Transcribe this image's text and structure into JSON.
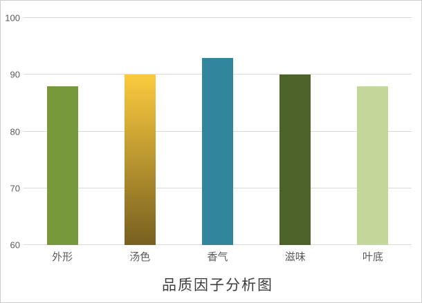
{
  "chart_data": {
    "type": "bar",
    "title": "品质因子分析图",
    "categories": [
      "外形",
      "汤色",
      "香气",
      "滋味",
      "叶底"
    ],
    "values": [
      88,
      90,
      93,
      90,
      88
    ],
    "bar_fills": [
      {
        "type": "solid",
        "color": "#77993C"
      },
      {
        "type": "gradient",
        "from": "#FBCB3E",
        "to": "#776020"
      },
      {
        "type": "solid",
        "color": "#31859C"
      },
      {
        "type": "solid",
        "color": "#4D6228"
      },
      {
        "type": "solid",
        "color": "#C4D79B"
      }
    ],
    "xlabel": "",
    "ylabel": "",
    "ylim": [
      60,
      100
    ],
    "yticks": [
      60,
      70,
      80,
      90,
      100
    ],
    "grid": "horizontal",
    "legend": "none"
  },
  "colors": {
    "grid_line": "#D9D9D9",
    "axis_label": "#595959",
    "title_text": "#3D3D3D",
    "frame_border": "#CCCCCC",
    "background": "#FFFFFF"
  }
}
